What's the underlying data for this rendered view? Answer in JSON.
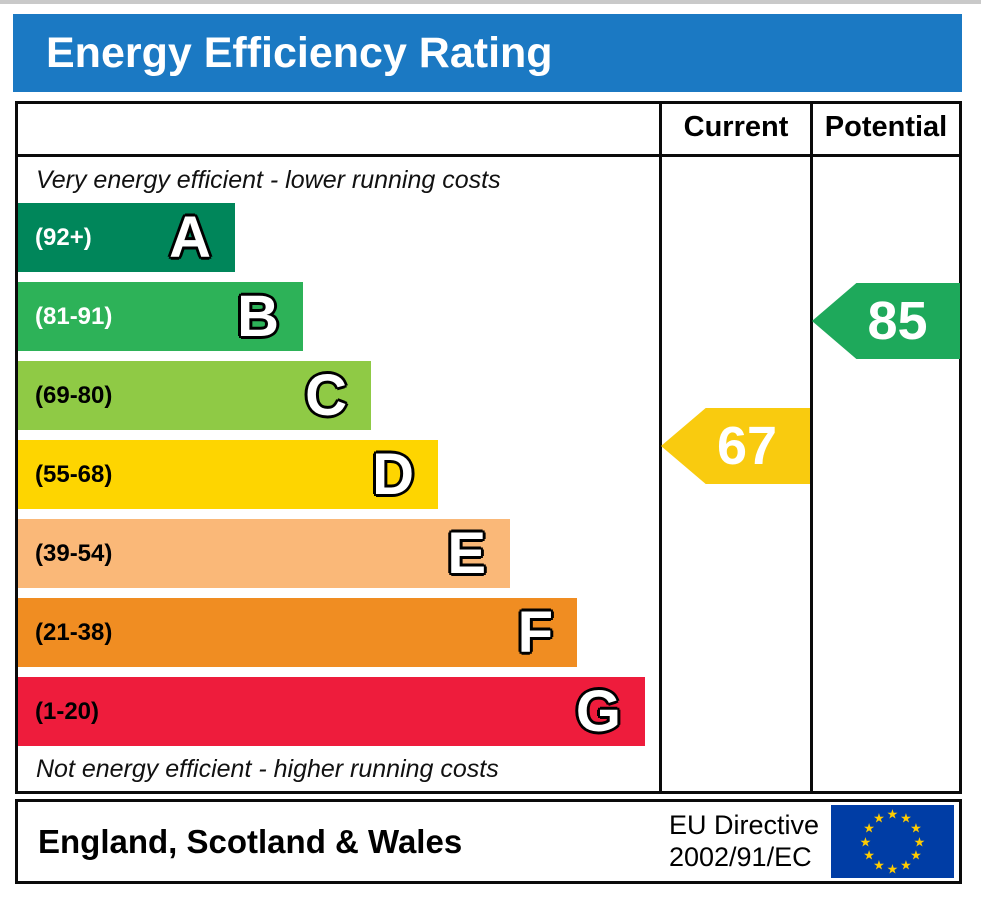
{
  "title": "Energy Efficiency Rating",
  "header": {
    "current": "Current",
    "potential": "Potential"
  },
  "notes": {
    "top": "Very energy efficient - lower running costs",
    "bottom": "Not energy efficient - higher running costs"
  },
  "bands": [
    {
      "letter": "A",
      "range": "(92+)",
      "color": "#00865a"
    },
    {
      "letter": "B",
      "range": "(81-91)",
      "color": "#2db258"
    },
    {
      "letter": "C",
      "range": "(69-80)",
      "color": "#8fca45"
    },
    {
      "letter": "D",
      "range": "(55-68)",
      "color": "#fed500"
    },
    {
      "letter": "E",
      "range": "(39-54)",
      "color": "#fab878"
    },
    {
      "letter": "F",
      "range": "(21-38)",
      "color": "#f08d22"
    },
    {
      "letter": "G",
      "range": "(1-20)",
      "color": "#ee1c3c"
    }
  ],
  "ratings": {
    "current": {
      "value": "67",
      "band": "D",
      "color": "#f9cb0f"
    },
    "potential": {
      "value": "85",
      "band": "B",
      "color": "#1ea95b"
    }
  },
  "footer": {
    "region": "England, Scotland & Wales",
    "directive_line1": "EU Directive",
    "directive_line2": "2002/91/EC",
    "flag": "eu-flag",
    "flag_blue": "#003da5",
    "flag_star_color": "#ffcc00"
  },
  "accent_colors": {
    "title_bar_blue": "#1b79c3",
    "border_black": "#0a0a0a"
  },
  "chart_data": {
    "type": "bar",
    "title": "Energy Efficiency Rating",
    "categories": [
      "A (92+)",
      "B (81-91)",
      "C (69-80)",
      "D (55-68)",
      "E (39-54)",
      "F (21-38)",
      "G (1-20)"
    ],
    "band_ranges": [
      [
        92,
        100
      ],
      [
        81,
        91
      ],
      [
        69,
        80
      ],
      [
        55,
        68
      ],
      [
        39,
        54
      ],
      [
        21,
        38
      ],
      [
        1,
        20
      ]
    ],
    "band_colors": [
      "#00865a",
      "#2db258",
      "#8fca45",
      "#fed500",
      "#fab878",
      "#f08d22",
      "#ee1c3c"
    ],
    "series": [
      {
        "name": "Current",
        "value": 67,
        "band": "D",
        "color": "#f9cb0f"
      },
      {
        "name": "Potential",
        "value": 85,
        "band": "B",
        "color": "#1ea95b"
      }
    ],
    "scale": [
      1,
      100
    ],
    "annotations": [
      "Very energy efficient - lower running costs",
      "Not energy efficient - higher running costs"
    ],
    "footer": "England, Scotland & Wales",
    "directive": "EU Directive 2002/91/EC"
  }
}
